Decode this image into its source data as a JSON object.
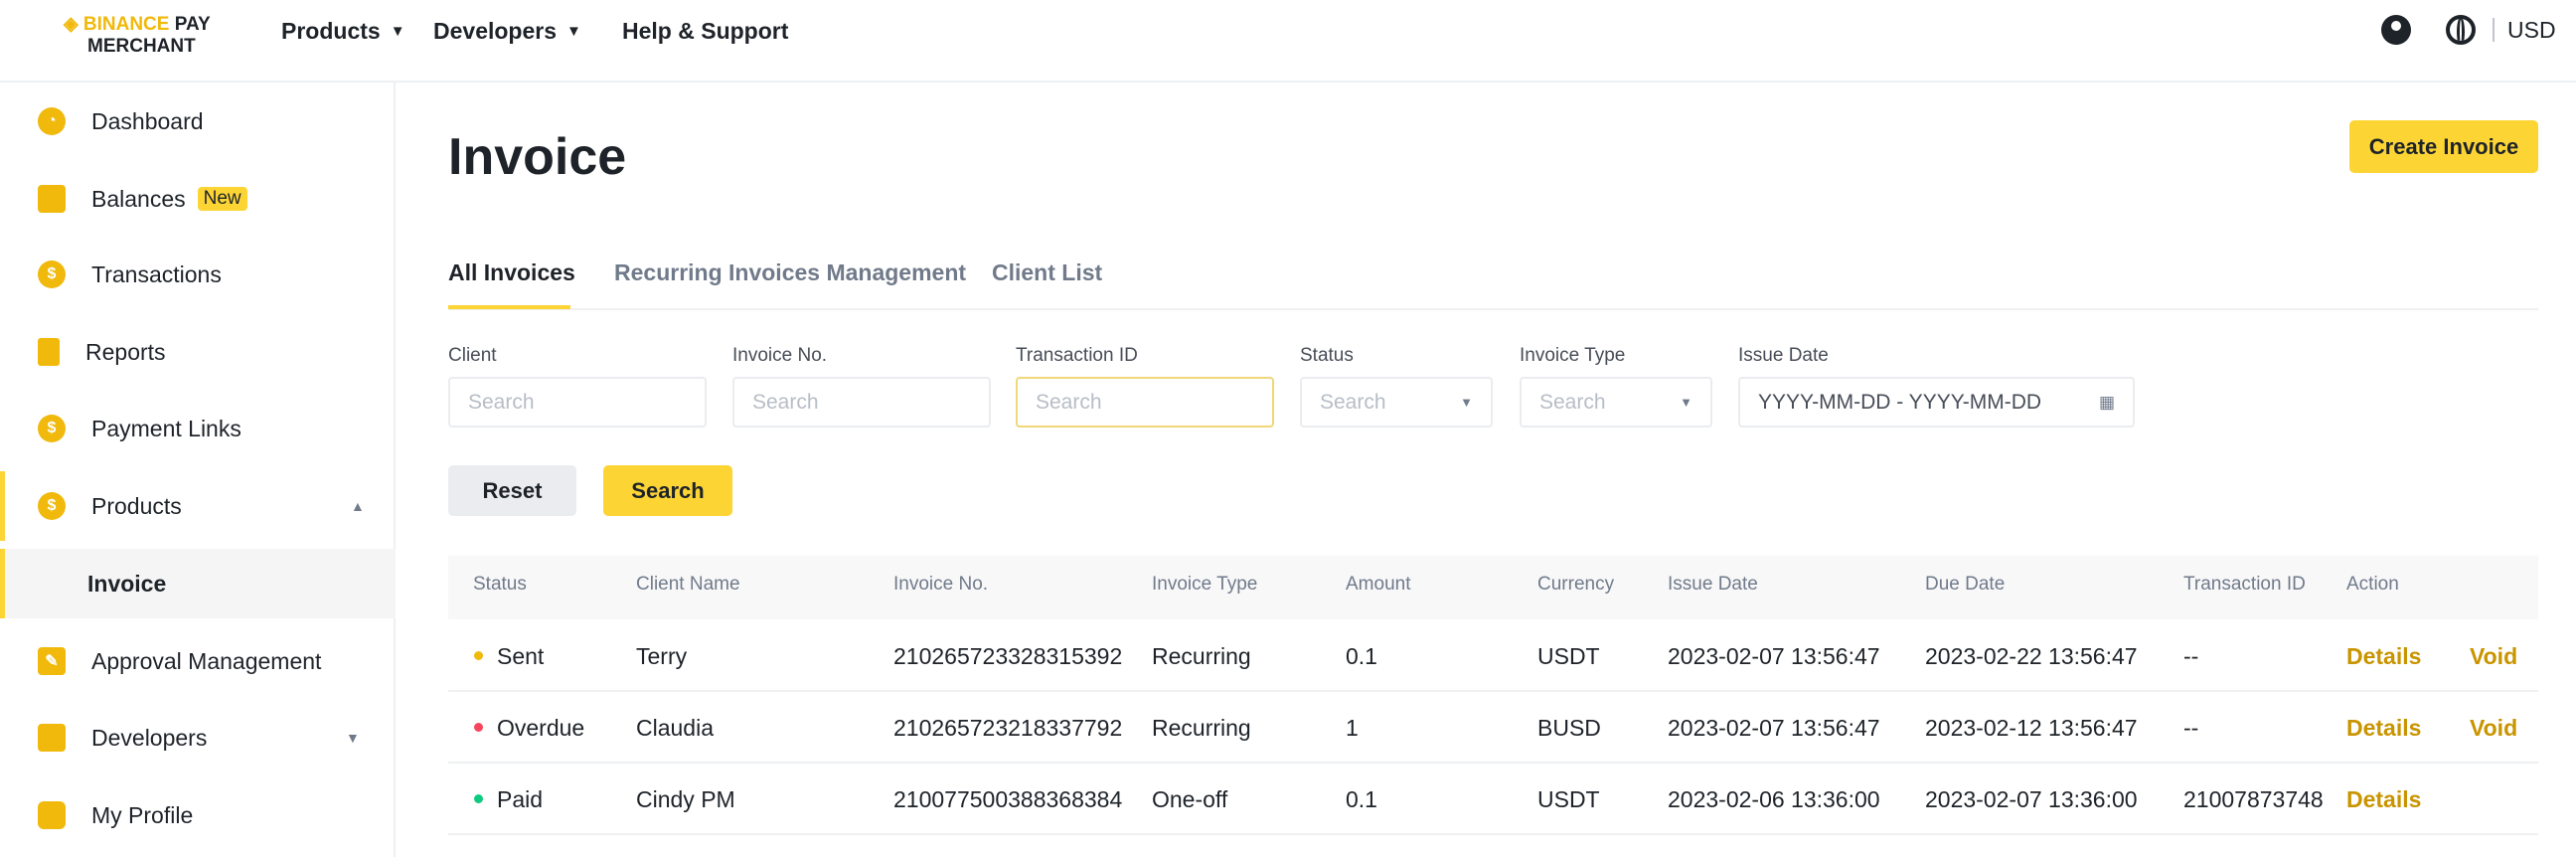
{
  "header": {
    "logo_line1_brand": "BINANCE",
    "logo_line1_rest": "PAY",
    "logo_line2": "MERCHANT",
    "nav": [
      {
        "label": "Products",
        "has_caret": true
      },
      {
        "label": "Developers",
        "has_caret": true
      },
      {
        "label": "Help & Support",
        "has_caret": false
      }
    ],
    "currency": "USD",
    "icons": [
      "user-icon",
      "globe-icon"
    ]
  },
  "sidebar": {
    "items": [
      {
        "label": "Dashboard",
        "icon": "pie-chart-icon"
      },
      {
        "label": "Balances",
        "icon": "wallet-icon",
        "badge": "New"
      },
      {
        "label": "Transactions",
        "icon": "transactions-icon"
      },
      {
        "label": "Reports",
        "icon": "clipboard-icon"
      },
      {
        "label": "Payment Links",
        "icon": "dollar-icon"
      },
      {
        "label": "Products",
        "icon": "dollar-icon",
        "expanded": true
      },
      {
        "label": "Invoice",
        "active": true
      },
      {
        "label": "Approval Management",
        "icon": "edit-icon"
      },
      {
        "label": "Developers",
        "icon": "plug-icon"
      },
      {
        "label": "My Profile",
        "icon": "profile-icon"
      }
    ]
  },
  "main": {
    "title": "Invoice",
    "create_button": "Create Invoice",
    "tabs": [
      {
        "label": "All Invoices",
        "active": true
      },
      {
        "label": "Recurring Invoices Management"
      },
      {
        "label": "Client List"
      }
    ],
    "filters": [
      {
        "label": "Client",
        "placeholder": "Search"
      },
      {
        "label": "Invoice No.",
        "placeholder": "Search"
      },
      {
        "label": "Transaction ID",
        "placeholder": "Search"
      },
      {
        "label": "Status",
        "placeholder": "Search"
      },
      {
        "label": "Invoice Type",
        "placeholder": "Search"
      },
      {
        "label": "Issue Date",
        "placeholder": "YYYY-MM-DD - YYYY-MM-DD"
      }
    ],
    "reset_button": "Reset",
    "search_button": "Search",
    "table": {
      "columns": [
        "Status",
        "Client Name",
        "Invoice No.",
        "Invoice Type",
        "Amount",
        "Currency",
        "Issue Date",
        "Due Date",
        "Transaction ID",
        "Action"
      ],
      "rows": [
        {
          "status": "Sent",
          "status_color": "#f0b90b",
          "client": "Terry",
          "invoice_no": "210265723328315392",
          "type": "Recurring",
          "amount": "0.1",
          "currency": "USDT",
          "issue": "2023-02-07 13:56:47",
          "due": "2023-02-22 13:56:47",
          "txid": "--",
          "details": "Details",
          "void": "Void"
        },
        {
          "status": "Overdue",
          "status_color": "#f6465d",
          "client": "Claudia",
          "invoice_no": "210265723218337792",
          "type": "Recurring",
          "amount": "1",
          "currency": "BUSD",
          "issue": "2023-02-07 13:56:47",
          "due": "2023-02-12 13:56:47",
          "txid": "--",
          "details": "Details",
          "void": "Void"
        },
        {
          "status": "Paid",
          "status_color": "#0ecb81",
          "client": "Cindy PM",
          "invoice_no": "210077500388368384",
          "type": "One-off",
          "amount": "0.1",
          "currency": "USDT",
          "issue": "2023-02-06 13:36:00",
          "due": "2023-02-07 13:36:00",
          "txid": "21007873748",
          "details": "Details"
        }
      ]
    }
  },
  "colors": {
    "accent": "#fcd535",
    "link": "#c99400"
  }
}
